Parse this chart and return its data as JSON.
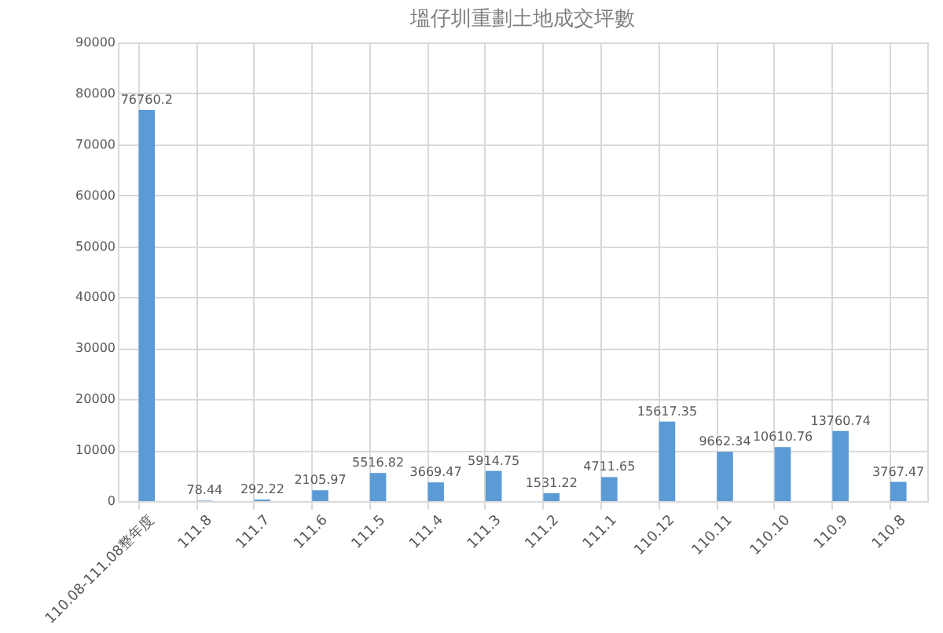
{
  "chart_data": {
    "type": "bar",
    "title": "塭仔圳重劃土地成交坪數",
    "categories": [
      "110.08-111.08整年度",
      "111.8",
      "111.7",
      "111.6",
      "111.5",
      "111.4",
      "111.3",
      "111.2",
      "111.1",
      "110.12",
      "110.11",
      "110.10",
      "110.9",
      "110.8"
    ],
    "values": [
      76760.2,
      78.44,
      292.22,
      2105.97,
      5516.82,
      3669.47,
      5914.75,
      1531.22,
      4711.65,
      15617.35,
      9662.34,
      10610.76,
      13760.74,
      3767.47
    ],
    "color": "#5b9bd5",
    "ylim": [
      0,
      90000
    ],
    "yticks": [
      0,
      10000,
      20000,
      30000,
      40000,
      50000,
      60000,
      70000,
      80000,
      90000
    ],
    "grid": true,
    "data_labels": true
  }
}
